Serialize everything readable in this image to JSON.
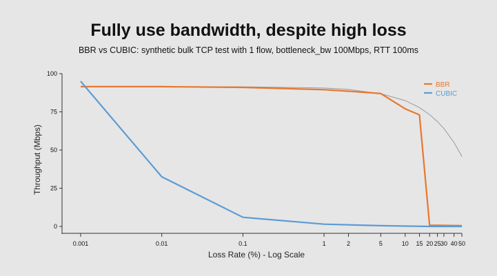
{
  "chart_data": {
    "type": "line",
    "title": "Fully use bandwidth, despite high loss",
    "subtitle": "BBR vs CUBIC: synthetic bulk TCP test with 1 flow, bottleneck_bw 100Mbps, RTT 100ms",
    "xlabel": "Loss Rate (%) - Log Scale",
    "ylabel": "Throughput (Mbps)",
    "xscale": "log",
    "xlim": [
      0.001,
      50
    ],
    "ylim": [
      0,
      100
    ],
    "xticks": [
      0.001,
      0.01,
      0.1,
      1,
      2,
      5,
      10,
      15,
      20,
      25,
      30,
      40,
      50
    ],
    "xtick_labels": [
      "0.001",
      "0.01",
      "0.1",
      "1",
      "2",
      "5",
      "10",
      "15",
      "20",
      "25",
      "30",
      "40",
      "50"
    ],
    "yticks": [
      0,
      25,
      50,
      75,
      100
    ],
    "ytick_labels": [
      "0",
      "25",
      "50",
      "75",
      "100"
    ],
    "grid": false,
    "legend_placement": "top-right",
    "series": [
      {
        "name": "BBR",
        "color": "#e8772e",
        "x": [
          0.001,
          0.01,
          0.1,
          1,
          2,
          5,
          10,
          15,
          20,
          50
        ],
        "y": [
          91.5,
          91.5,
          91,
          89.5,
          88.5,
          87,
          77,
          73,
          0.8,
          0.5
        ]
      },
      {
        "name": "CUBIC",
        "color": "#5b9bd5",
        "x": [
          0.001,
          0.01,
          0.1,
          1,
          5,
          20,
          50
        ],
        "y": [
          95,
          32.5,
          6,
          1.5,
          0.5,
          0,
          0
        ]
      },
      {
        "color": "#999999",
        "x": [
          0.001,
          0.01,
          0.1,
          1,
          2,
          5,
          10,
          15,
          20,
          25,
          30,
          40,
          50
        ],
        "y": [
          91.5,
          91.49,
          91.4,
          90.6,
          89.7,
          86.9,
          82.4,
          77.8,
          73.2,
          68.6,
          64.1,
          54.9,
          45.8
        ]
      }
    ]
  }
}
